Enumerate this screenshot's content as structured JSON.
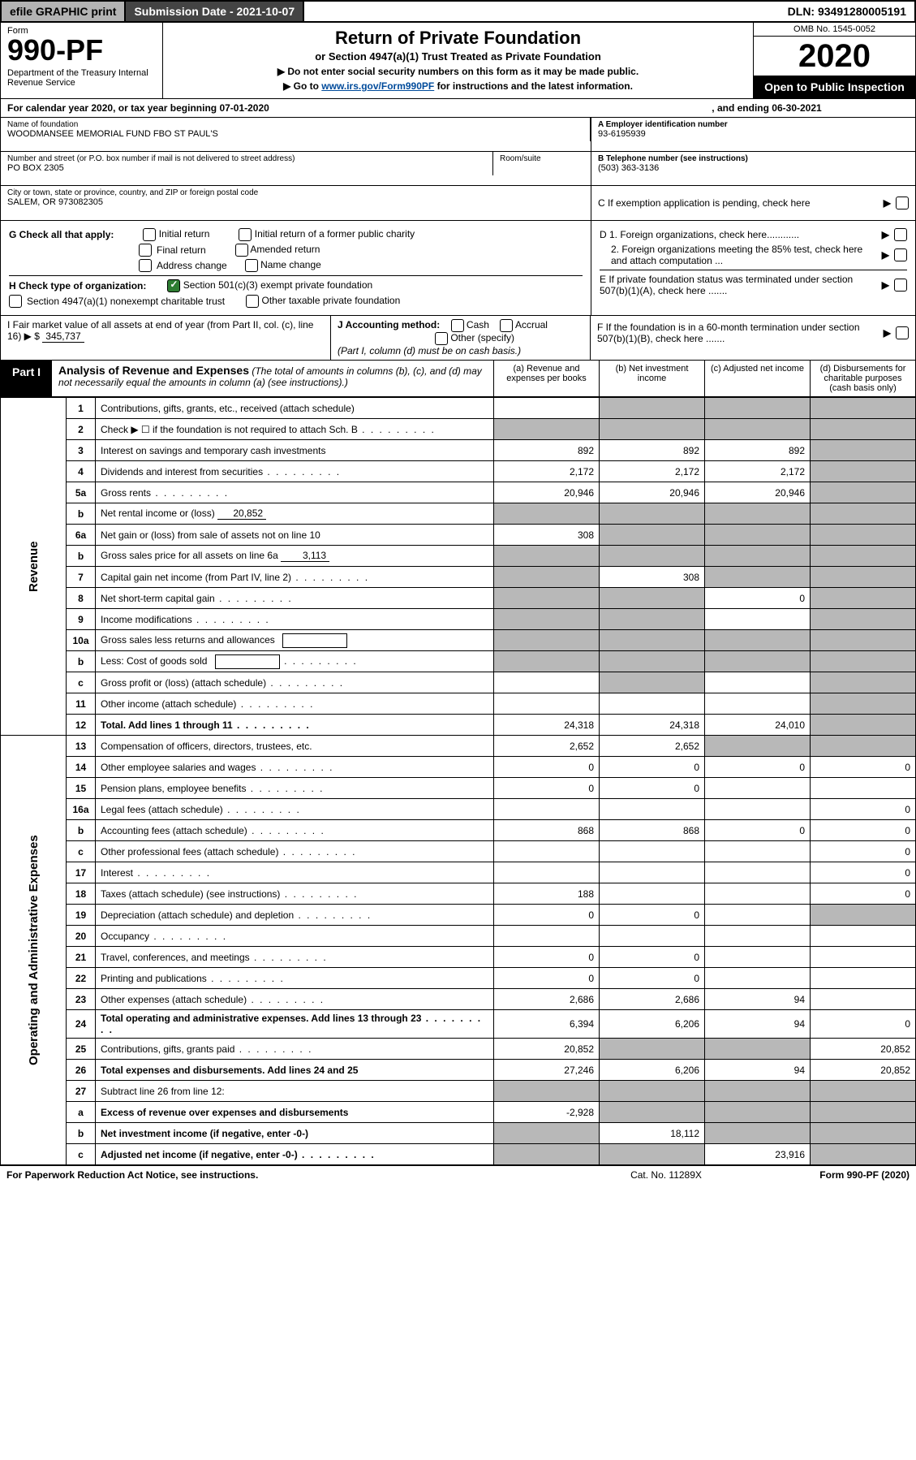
{
  "topbar": {
    "efile": "efile GRAPHIC print",
    "sub_date": "Submission Date - 2021-10-07",
    "dln": "DLN: 93491280005191"
  },
  "header": {
    "form_label": "Form",
    "form_no": "990-PF",
    "dept": "Department of the Treasury\nInternal Revenue Service",
    "title": "Return of Private Foundation",
    "subtitle": "or Section 4947(a)(1) Trust Treated as Private Foundation",
    "note1": "▶ Do not enter social security numbers on this form as it may be made public.",
    "note2_pre": "▶ Go to ",
    "note2_link": "www.irs.gov/Form990PF",
    "note2_post": " for instructions and the latest information.",
    "omb": "OMB No. 1545-0052",
    "year": "2020",
    "open": "Open to Public Inspection"
  },
  "cal_year": {
    "text": "For calendar year 2020, or tax year beginning 07-01-2020",
    "ending": ", and ending 06-30-2021"
  },
  "info": {
    "name_lbl": "Name of foundation",
    "name_val": "WOODMANSEE MEMORIAL FUND FBO ST PAUL'S",
    "addr_lbl": "Number and street (or P.O. box number if mail is not delivered to street address)",
    "addr_val": "PO BOX 2305",
    "room_lbl": "Room/suite",
    "city_lbl": "City or town, state or province, country, and ZIP or foreign postal code",
    "city_val": "SALEM, OR  973082305",
    "a_lbl": "A Employer identification number",
    "a_val": "93-6195939",
    "b_lbl": "B Telephone number (see instructions)",
    "b_val": "(503) 363-3136",
    "c_lbl": "C If exemption application is pending, check here"
  },
  "checks": {
    "g_lbl": "G Check all that apply:",
    "g_items": [
      "Initial return",
      "Initial return of a former public charity",
      "Final return",
      "Amended return",
      "Address change",
      "Name change"
    ],
    "h_lbl": "H Check type of organization:",
    "h_501c3": "Section 501(c)(3) exempt private foundation",
    "h_4947": "Section 4947(a)(1) nonexempt charitable trust",
    "h_other": "Other taxable private foundation",
    "i_lbl": "I Fair market value of all assets at end of year (from Part II, col. (c), line 16) ▶ $",
    "i_val": "345,737",
    "j_lbl": "J Accounting method:",
    "j_cash": "Cash",
    "j_accr": "Accrual",
    "j_other": "Other (specify)",
    "j_note": "(Part I, column (d) must be on cash basis.)",
    "d1": "D 1. Foreign organizations, check here............",
    "d2": "2. Foreign organizations meeting the 85% test, check here and attach computation ...",
    "e": "E  If private foundation status was terminated under section 507(b)(1)(A), check here .......",
    "f": "F  If the foundation is in a 60-month termination under section 507(b)(1)(B), check here ......."
  },
  "part1": {
    "tab": "Part I",
    "title": "Analysis of Revenue and Expenses",
    "title_note": "(The total of amounts in columns (b), (c), and (d) may not necessarily equal the amounts in column (a) (see instructions).)",
    "col_a": "(a) Revenue and expenses per books",
    "col_b": "(b) Net investment income",
    "col_c": "(c) Adjusted net income",
    "col_d": "(d) Disbursements for charitable purposes (cash basis only)"
  },
  "sections": {
    "revenue": "Revenue",
    "expenses": "Operating and Administrative Expenses"
  },
  "rows": [
    {
      "n": "1",
      "d": "Contributions, gifts, grants, etc., received (attach schedule)",
      "a": "",
      "b": "g",
      "c": "g",
      "dd": "g"
    },
    {
      "n": "2",
      "d": "Check ▶ ☐ if the foundation is not required to attach Sch. B",
      "a": "g",
      "b": "g",
      "c": "g",
      "dd": "g",
      "dots": true
    },
    {
      "n": "3",
      "d": "Interest on savings and temporary cash investments",
      "a": "892",
      "b": "892",
      "c": "892",
      "dd": "g"
    },
    {
      "n": "4",
      "d": "Dividends and interest from securities",
      "a": "2,172",
      "b": "2,172",
      "c": "2,172",
      "dd": "g",
      "dots": true
    },
    {
      "n": "5a",
      "d": "Gross rents",
      "a": "20,946",
      "b": "20,946",
      "c": "20,946",
      "dd": "g",
      "dots": true
    },
    {
      "n": "b",
      "d": "Net rental income or (loss)",
      "inline": "20,852",
      "a": "g",
      "b": "g",
      "c": "g",
      "dd": "g"
    },
    {
      "n": "6a",
      "d": "Net gain or (loss) from sale of assets not on line 10",
      "a": "308",
      "b": "g",
      "c": "g",
      "dd": "g"
    },
    {
      "n": "b",
      "d": "Gross sales price for all assets on line 6a",
      "inline": "3,113",
      "a": "g",
      "b": "g",
      "c": "g",
      "dd": "g"
    },
    {
      "n": "7",
      "d": "Capital gain net income (from Part IV, line 2)",
      "a": "g",
      "b": "308",
      "c": "g",
      "dd": "g",
      "dots": true
    },
    {
      "n": "8",
      "d": "Net short-term capital gain",
      "a": "g",
      "b": "g",
      "c": "0",
      "dd": "g",
      "dots": true
    },
    {
      "n": "9",
      "d": "Income modifications",
      "a": "g",
      "b": "g",
      "c": "",
      "dd": "g",
      "dots": true
    },
    {
      "n": "10a",
      "d": "Gross sales less returns and allowances",
      "box": true,
      "a": "g",
      "b": "g",
      "c": "g",
      "dd": "g"
    },
    {
      "n": "b",
      "d": "Less: Cost of goods sold",
      "box": true,
      "a": "g",
      "b": "g",
      "c": "g",
      "dd": "g",
      "dots": true
    },
    {
      "n": "c",
      "d": "Gross profit or (loss) (attach schedule)",
      "a": "",
      "b": "g",
      "c": "",
      "dd": "g",
      "dots": true
    },
    {
      "n": "11",
      "d": "Other income (attach schedule)",
      "a": "",
      "b": "",
      "c": "",
      "dd": "g",
      "dots": true
    },
    {
      "n": "12",
      "d": "Total. Add lines 1 through 11",
      "bold": true,
      "a": "24,318",
      "b": "24,318",
      "c": "24,010",
      "dd": "g",
      "dots": true
    }
  ],
  "exp_rows": [
    {
      "n": "13",
      "d": "Compensation of officers, directors, trustees, etc.",
      "a": "2,652",
      "b": "2,652",
      "c": "g",
      "dd": "g"
    },
    {
      "n": "14",
      "d": "Other employee salaries and wages",
      "a": "0",
      "b": "0",
      "c": "0",
      "dd": "0",
      "dots": true
    },
    {
      "n": "15",
      "d": "Pension plans, employee benefits",
      "a": "0",
      "b": "0",
      "c": "",
      "dd": "",
      "dots": true
    },
    {
      "n": "16a",
      "d": "Legal fees (attach schedule)",
      "a": "",
      "b": "",
      "c": "",
      "dd": "0",
      "dots": true
    },
    {
      "n": "b",
      "d": "Accounting fees (attach schedule)",
      "a": "868",
      "b": "868",
      "c": "0",
      "dd": "0",
      "dots": true
    },
    {
      "n": "c",
      "d": "Other professional fees (attach schedule)",
      "a": "",
      "b": "",
      "c": "",
      "dd": "0",
      "dots": true
    },
    {
      "n": "17",
      "d": "Interest",
      "a": "",
      "b": "",
      "c": "",
      "dd": "0",
      "dots": true
    },
    {
      "n": "18",
      "d": "Taxes (attach schedule) (see instructions)",
      "a": "188",
      "b": "",
      "c": "",
      "dd": "0",
      "dots": true
    },
    {
      "n": "19",
      "d": "Depreciation (attach schedule) and depletion",
      "a": "0",
      "b": "0",
      "c": "",
      "dd": "g",
      "dots": true
    },
    {
      "n": "20",
      "d": "Occupancy",
      "a": "",
      "b": "",
      "c": "",
      "dd": "",
      "dots": true
    },
    {
      "n": "21",
      "d": "Travel, conferences, and meetings",
      "a": "0",
      "b": "0",
      "c": "",
      "dd": "",
      "dots": true
    },
    {
      "n": "22",
      "d": "Printing and publications",
      "a": "0",
      "b": "0",
      "c": "",
      "dd": "",
      "dots": true
    },
    {
      "n": "23",
      "d": "Other expenses (attach schedule)",
      "a": "2,686",
      "b": "2,686",
      "c": "94",
      "dd": "",
      "dots": true
    },
    {
      "n": "24",
      "d": "Total operating and administrative expenses. Add lines 13 through 23",
      "bold": true,
      "a": "6,394",
      "b": "6,206",
      "c": "94",
      "dd": "0",
      "dots": true
    },
    {
      "n": "25",
      "d": "Contributions, gifts, grants paid",
      "a": "20,852",
      "b": "g",
      "c": "g",
      "dd": "20,852",
      "dots": true
    },
    {
      "n": "26",
      "d": "Total expenses and disbursements. Add lines 24 and 25",
      "bold": true,
      "a": "27,246",
      "b": "6,206",
      "c": "94",
      "dd": "20,852"
    },
    {
      "n": "27",
      "d": "Subtract line 26 from line 12:",
      "a": "g",
      "b": "g",
      "c": "g",
      "dd": "g"
    },
    {
      "n": "a",
      "d": "Excess of revenue over expenses and disbursements",
      "bold": true,
      "a": "-2,928",
      "b": "g",
      "c": "g",
      "dd": "g"
    },
    {
      "n": "b",
      "d": "Net investment income (if negative, enter -0-)",
      "bold": true,
      "a": "g",
      "b": "18,112",
      "c": "g",
      "dd": "g"
    },
    {
      "n": "c",
      "d": "Adjusted net income (if negative, enter -0-)",
      "bold": true,
      "a": "g",
      "b": "g",
      "c": "23,916",
      "dd": "g",
      "dots": true
    }
  ],
  "footer": {
    "l": "For Paperwork Reduction Act Notice, see instructions.",
    "m": "Cat. No. 11289X",
    "r": "Form 990-PF (2020)"
  },
  "colors": {
    "grey_cell": "#b8b8b8",
    "link": "#004b9b",
    "check_green": "#2e7d32"
  }
}
